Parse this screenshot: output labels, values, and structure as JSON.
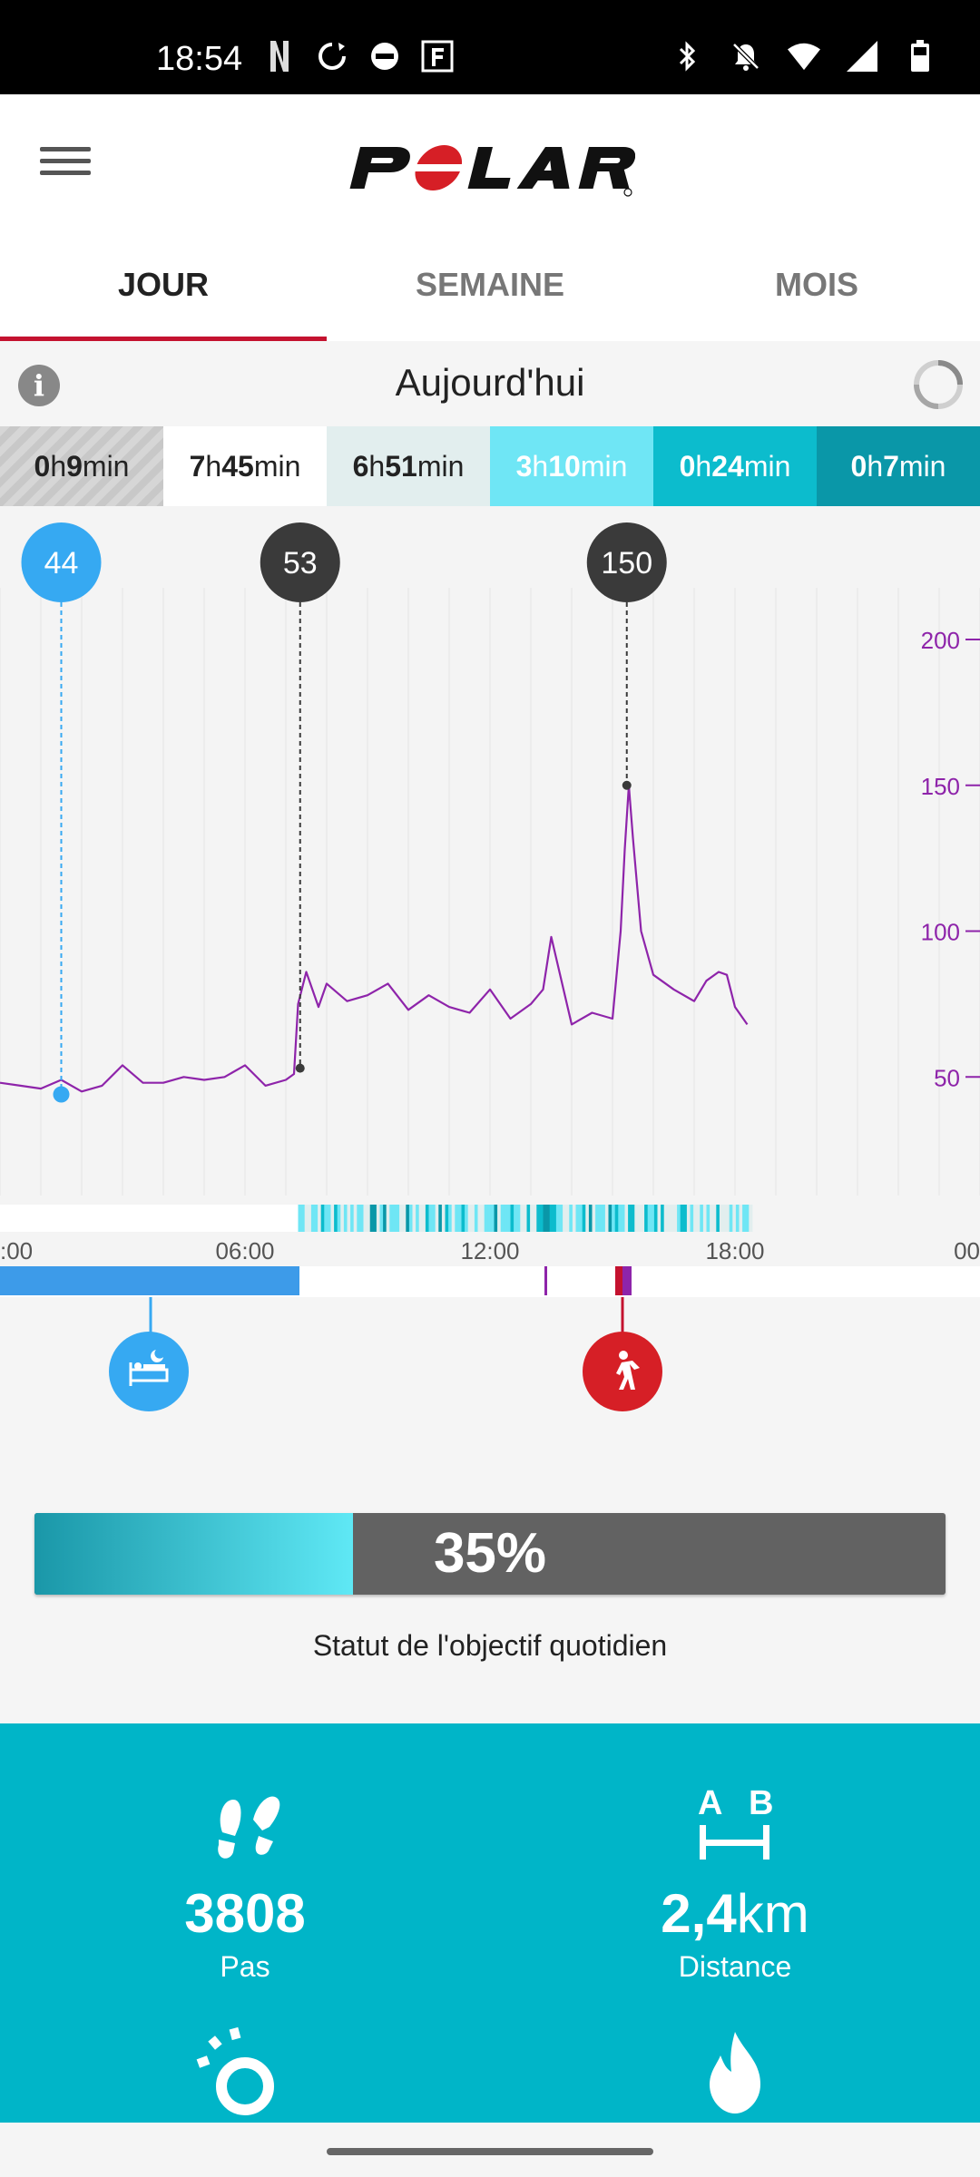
{
  "status_bar": {
    "time": "18:54",
    "left_icons": [
      "netflix-icon",
      "sync-icon",
      "dnd-app-icon",
      "f-app-icon"
    ],
    "right_icons": [
      "bluetooth-icon",
      "bell-off-icon",
      "wifi-icon",
      "signal-icon",
      "battery-icon"
    ]
  },
  "app_bar": {
    "logo_text": "POLAR",
    "menu_icon": "hamburger-menu-icon"
  },
  "tabs": [
    {
      "label": "JOUR",
      "active": true
    },
    {
      "label": "SEMAINE",
      "active": false
    },
    {
      "label": "MOIS",
      "active": false
    }
  ],
  "day_header": {
    "title": "Aujourd'hui",
    "info_icon": "info-icon",
    "refresh_icon": "refresh-progress-icon"
  },
  "activity_zones": [
    {
      "h": "0",
      "m": "9",
      "bg": "#cfcfcf",
      "color": "#222"
    },
    {
      "h": "7",
      "m": "45",
      "bg": "#ffffff",
      "color": "#222"
    },
    {
      "h": "6",
      "m": "51",
      "bg": "#e2eeee",
      "color": "#222"
    },
    {
      "h": "3",
      "m": "10",
      "bg": "#6fe6f5",
      "color": "#ffffff"
    },
    {
      "h": "0",
      "m": "24",
      "bg": "#0cbccd",
      "color": "#ffffff"
    },
    {
      "h": "0",
      "m": "7",
      "bg": "#0a97a8",
      "color": "#ffffff"
    }
  ],
  "zone_labels": {
    "h": "h",
    "min": "min"
  },
  "chart_data": {
    "type": "line",
    "series": [
      {
        "values_x_hours": [
          0,
          0.5,
          1,
          1.5,
          2,
          2.5,
          3,
          3.5,
          4,
          4.5,
          5,
          5.5,
          6,
          6.5,
          7,
          7.2,
          7.3,
          7.5,
          7.8,
          8,
          8.5,
          9,
          9.5,
          10,
          10.5,
          11,
          11.5,
          12,
          12.5,
          13,
          13.3,
          13.5,
          14,
          14.5,
          15,
          15.2,
          15.3,
          15.4,
          15.5,
          15.7,
          16,
          16.5,
          17,
          17.3,
          17.6,
          17.8,
          18,
          18.3
        ],
        "values_y": [
          48,
          47,
          46,
          49,
          45,
          47,
          54,
          48,
          48,
          50,
          49,
          50,
          54,
          47,
          49,
          51,
          75,
          86,
          74,
          82,
          76,
          78,
          82,
          73,
          78,
          74,
          72,
          80,
          70,
          75,
          80,
          98,
          68,
          72,
          70,
          100,
          128,
          150,
          132,
          100,
          85,
          80,
          76,
          83,
          86,
          85,
          74,
          68
        ]
      }
    ],
    "markers": [
      {
        "label": "44",
        "x_hours": 1.5,
        "y": 44,
        "color": "#36a9f2"
      },
      {
        "label": "53",
        "x_hours": 7.35,
        "y": 53,
        "color": "#3a3a3a"
      },
      {
        "label": "150",
        "x_hours": 15.35,
        "y": 150,
        "color": "#3a3a3a"
      }
    ],
    "y_ticks": [
      "200",
      "150",
      "100",
      "50"
    ],
    "y_tick_values": [
      200,
      150,
      100,
      50
    ],
    "x_ticks": [
      ":00",
      "06:00",
      "12:00",
      "18:00",
      "00"
    ],
    "x_tick_values": [
      0,
      6,
      12,
      18,
      24
    ],
    "y_range": [
      0,
      215
    ],
    "line_color": "#8e24aa",
    "grid": true
  },
  "timeline": {
    "sleep_color": "#3d9be9",
    "activity_color": "#c4122f"
  },
  "events": [
    {
      "name": "sleep",
      "icon": "bed-icon",
      "color": "#36a9f2"
    },
    {
      "name": "walking",
      "icon": "walking-person-icon",
      "color": "#d61f26"
    }
  ],
  "goal": {
    "percent": 35,
    "text": "35%",
    "label": "Statut de l'objectif quotidien"
  },
  "stats": [
    {
      "value": "3808",
      "unit": "",
      "label": "Pas",
      "icon": "footsteps-icon"
    },
    {
      "value": "2,4",
      "unit": "km",
      "label": "Distance",
      "icon": "a-b-distance-icon"
    },
    {
      "value": "",
      "unit": "",
      "label": "",
      "icon": "active-time-icon"
    },
    {
      "value": "",
      "unit": "",
      "label": "",
      "icon": "calories-flame-icon"
    }
  ]
}
